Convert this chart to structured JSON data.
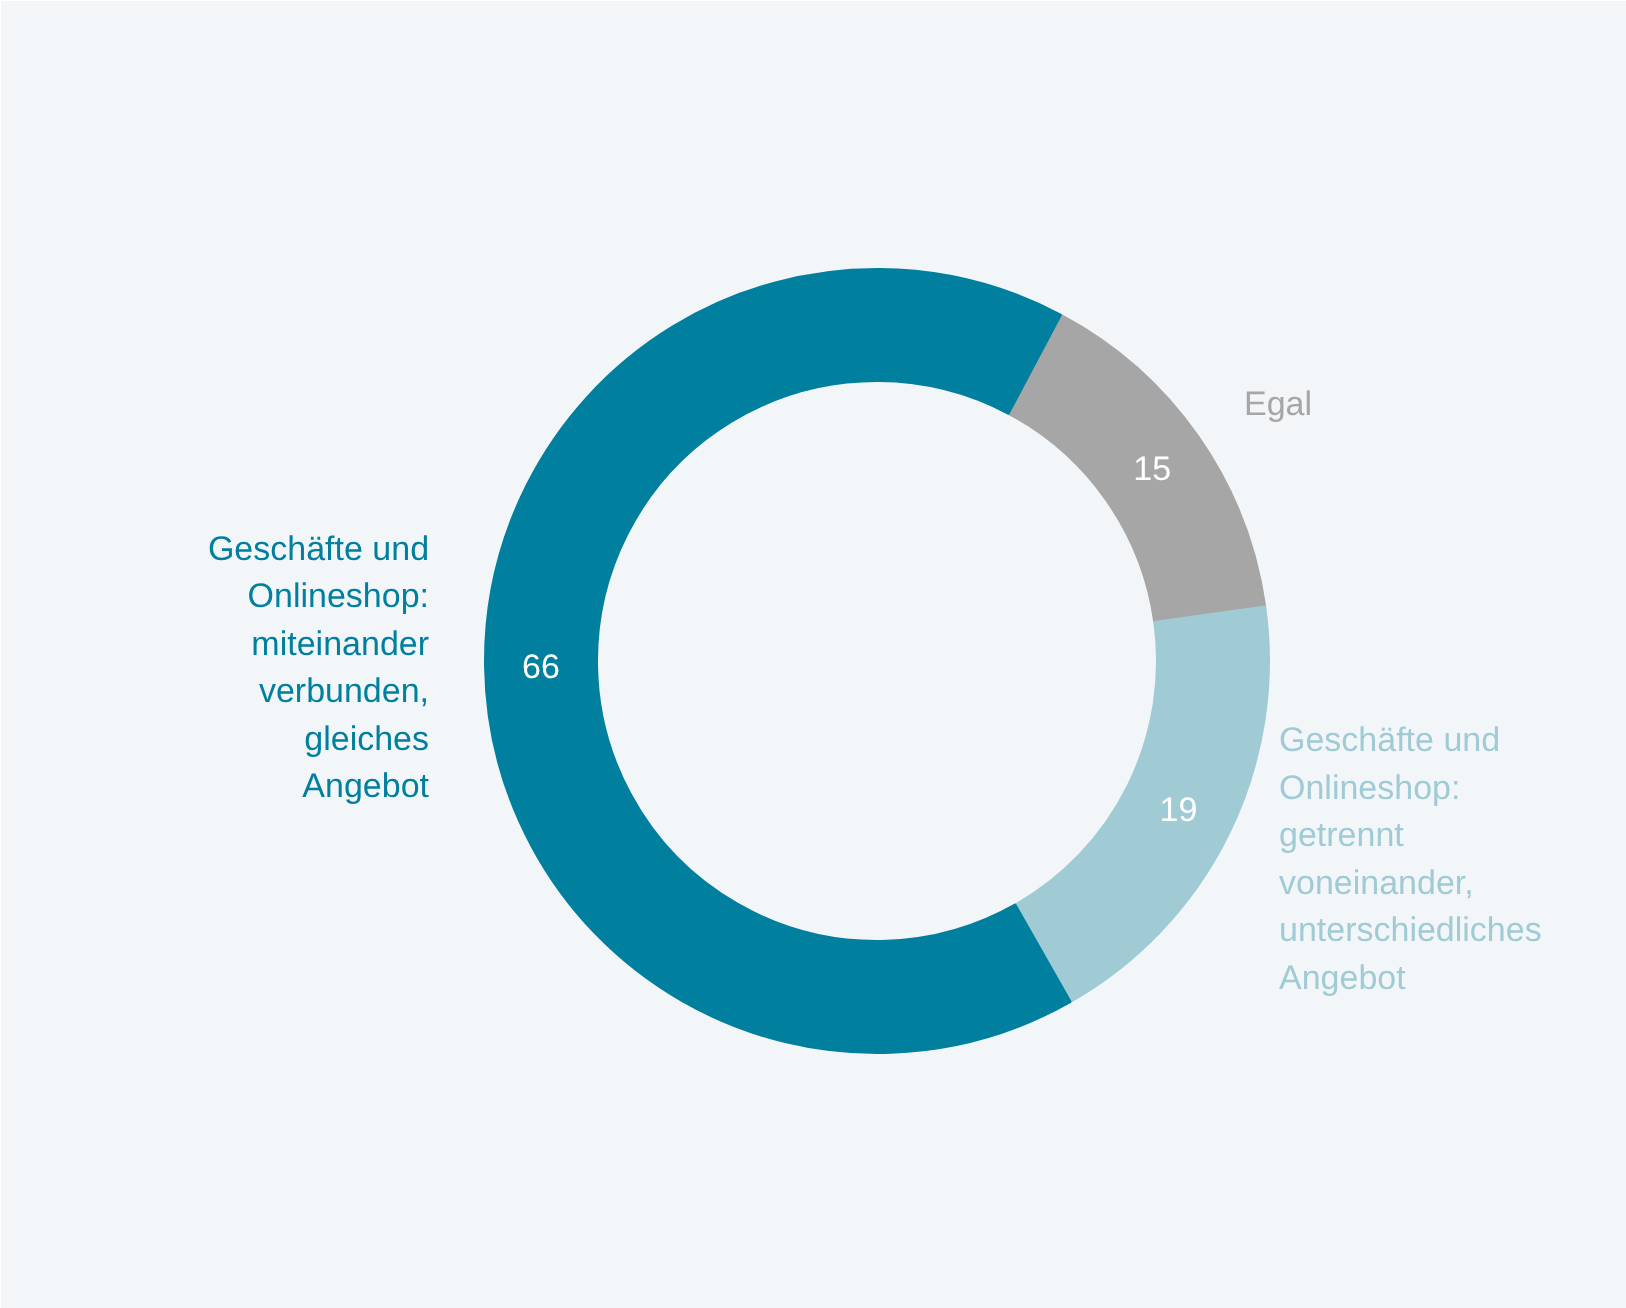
{
  "chart_data": {
    "type": "donut",
    "categories": [
      "Egal",
      "Geschäfte und\nOnlineshop:\ngetrennt\nvoneinander,\nunterschiedliches\nAngebot",
      "Geschäfte und\nOnlineshop:\nmiteinander\nverbunden,\ngleiches\nAngebot"
    ],
    "values": [
      15,
      19,
      66
    ],
    "colors": [
      "#a6a6a6",
      "#a0cbd5",
      "#007f9f"
    ],
    "data_labels": true
  }
}
